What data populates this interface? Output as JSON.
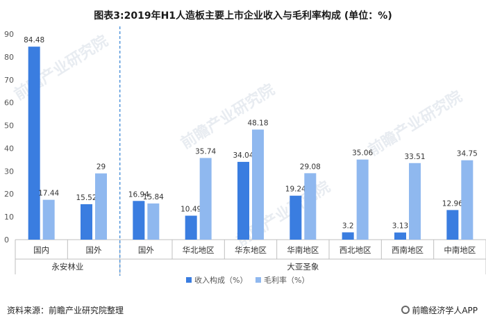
{
  "title": "图表3:2019年H1人造板主要上市企业收入与毛利率构成 (单位：%)",
  "source": "资料来源：前瞻产业研究院整理",
  "brand": "前瞻经济学人APP",
  "watermark": "前瞻产业研究院",
  "colors": {
    "revenue": "#3a7de0",
    "margin": "#8fb8ef",
    "axis": "#bfbfbf",
    "divider": "#4a90d9"
  },
  "chart_data": {
    "type": "bar",
    "ylim": [
      0,
      90
    ],
    "yticks": [
      0,
      10,
      20,
      30,
      40,
      50,
      60,
      70,
      80,
      90
    ],
    "categories": [
      "国内",
      "国外",
      "国外",
      "华北地区",
      "华东地区",
      "华南地区",
      "西北地区",
      "西南地区",
      "中南地区"
    ],
    "groups": [
      {
        "name": "永安林业",
        "span": [
          0,
          1
        ]
      },
      {
        "name": "大亚圣象",
        "span": [
          2,
          8
        ]
      }
    ],
    "series": [
      {
        "name": "收入构成（%）",
        "values": [
          84.48,
          15.52,
          16.94,
          10.49,
          34.04,
          19.24,
          3.2,
          3.13,
          12.96
        ]
      },
      {
        "name": "毛利率（%）",
        "values": [
          17.44,
          29,
          15.84,
          35.74,
          48.18,
          29.08,
          35.06,
          33.51,
          34.75
        ]
      }
    ],
    "legend_position": "bottom-center"
  }
}
